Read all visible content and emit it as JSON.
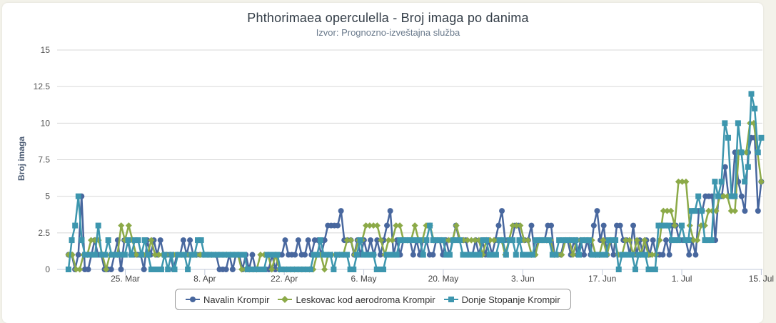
{
  "chart_data": {
    "type": "line",
    "title": "Phthorimaea operculella - Broj imaga po danima",
    "subtitle": "Izvor: Prognozno-izveštajna služba",
    "ylabel": "Broj imaga",
    "ylim": [
      0,
      15
    ],
    "yticks": [
      "0",
      "2.5",
      "5",
      "7.5",
      "10",
      "12.5",
      "15"
    ],
    "x_start": "2024-03-15",
    "x_end": "2024-07-15",
    "xticks": [
      {
        "label": "25. Mar",
        "date": "2024-03-25"
      },
      {
        "label": "8. Apr",
        "date": "2024-04-08"
      },
      {
        "label": "22. Apr",
        "date": "2024-04-22"
      },
      {
        "label": "6. May",
        "date": "2024-05-06"
      },
      {
        "label": "20. May",
        "date": "2024-05-20"
      },
      {
        "label": "3. Jun",
        "date": "2024-06-03"
      },
      {
        "label": "17. Jun",
        "date": "2024-06-17"
      },
      {
        "label": "1. Jul",
        "date": "2024-07-01"
      },
      {
        "label": "15. Jul",
        "date": "2024-07-15"
      }
    ],
    "grid": true,
    "legend_position": "bottom-center",
    "series": [
      {
        "name": "Navalin Krompir",
        "color": "#48679e",
        "marker": "circle",
        "values": [
          1,
          1,
          0,
          1,
          5,
          0,
          0,
          1,
          2,
          1,
          1,
          0,
          0,
          0,
          1,
          2,
          0,
          2,
          2,
          1,
          1,
          1,
          1,
          0,
          2,
          1,
          2,
          1,
          2,
          1,
          1,
          1,
          0,
          1,
          1,
          2,
          1,
          2,
          1,
          1,
          1,
          1,
          1,
          1,
          1,
          1,
          0,
          0,
          0,
          1,
          0,
          1,
          1,
          0,
          1,
          0,
          1,
          0,
          0,
          0,
          0,
          0,
          1,
          0,
          1,
          1,
          2,
          1,
          1,
          1,
          2,
          1,
          1,
          2,
          1,
          2,
          2,
          1,
          2,
          3,
          3,
          3,
          3,
          4,
          2,
          2,
          2,
          1,
          2,
          1,
          2,
          1,
          2,
          1,
          2,
          1,
          2,
          3,
          4,
          1,
          2,
          1,
          2,
          2,
          2,
          1,
          2,
          1,
          2,
          2,
          1,
          1,
          2,
          2,
          1,
          2,
          1,
          2,
          3,
          2,
          2,
          2,
          1,
          1,
          2,
          1,
          2,
          1,
          2,
          1,
          2,
          3,
          4,
          2,
          2,
          2,
          3,
          3,
          2,
          2,
          2,
          3,
          1,
          2,
          2,
          2,
          3,
          3,
          1,
          1,
          1,
          2,
          2,
          1,
          2,
          1,
          2,
          1,
          2,
          1,
          3,
          4,
          2,
          3,
          1,
          2,
          1,
          3,
          3,
          2,
          2,
          1,
          3,
          1,
          2,
          1,
          2,
          1,
          2,
          1,
          1,
          1,
          2,
          1,
          3,
          3,
          2,
          2,
          2,
          1,
          2,
          1,
          4,
          4,
          5,
          5,
          5,
          2,
          5,
          5,
          7,
          5,
          5,
          8,
          6,
          5,
          4,
          8,
          9,
          9,
          4,
          6
        ]
      },
      {
        "name": "Leskovac kod aerodroma Krompir",
        "color": "#8caa48",
        "marker": "diamond",
        "values": [
          1,
          1,
          0,
          0,
          1,
          1,
          2,
          2,
          2,
          1,
          0,
          1,
          1,
          1,
          3,
          2,
          3,
          2,
          1,
          1,
          1,
          1,
          2,
          1,
          1,
          1,
          1,
          1,
          1,
          1,
          1,
          1,
          1,
          1,
          1,
          1,
          1,
          1,
          1,
          1,
          1,
          1,
          1,
          1,
          1,
          1,
          0,
          0,
          0,
          0,
          0,
          1,
          1,
          1,
          0,
          1,
          0,
          0,
          0,
          0,
          0,
          0,
          0,
          0,
          0,
          0,
          1,
          1,
          0,
          1,
          1,
          1,
          1,
          1,
          2,
          2,
          1,
          2,
          2,
          3,
          3,
          3,
          3,
          2,
          1,
          2,
          2,
          3,
          3,
          2,
          2,
          2,
          3,
          2,
          2,
          3,
          3,
          2,
          2,
          2,
          2,
          2,
          2,
          3,
          2,
          2,
          2,
          2,
          2,
          2,
          1,
          2,
          2,
          2,
          2,
          2,
          1,
          2,
          3,
          3,
          3,
          2,
          2,
          1,
          1,
          2,
          2,
          2,
          2,
          1,
          1,
          1,
          2,
          2,
          1,
          2,
          2,
          2,
          2,
          2,
          1,
          1,
          2,
          1,
          2,
          2,
          1,
          1,
          2,
          2,
          1,
          2,
          1,
          2,
          1,
          1,
          1,
          2,
          4,
          4,
          4,
          3,
          6,
          6,
          6,
          3,
          2,
          2,
          3,
          3,
          4,
          4,
          4,
          5,
          5,
          5,
          4,
          4,
          8,
          8,
          8,
          10,
          10,
          8,
          6
        ]
      },
      {
        "name": "Donje Stopanje Krompir",
        "color": "#3d96ae",
        "marker": "square",
        "values": [
          0,
          2,
          3,
          5,
          2,
          1,
          1,
          1,
          1,
          3,
          1,
          1,
          2,
          1,
          1,
          1,
          1,
          1,
          2,
          1,
          2,
          2,
          1,
          2,
          1,
          0,
          0,
          0,
          0,
          1,
          0,
          1,
          0,
          1,
          1,
          1,
          0,
          1,
          1,
          2,
          2,
          1,
          1,
          1,
          1,
          1,
          1,
          1,
          1,
          1,
          1,
          1,
          1,
          1,
          0,
          0,
          0,
          0,
          0,
          0,
          1,
          1,
          1,
          1,
          0,
          0,
          0,
          0,
          0,
          0,
          0,
          0,
          0,
          0,
          1,
          1,
          2,
          1,
          1,
          1,
          0,
          1,
          1,
          1,
          1,
          0,
          0,
          1,
          2,
          1,
          1,
          1,
          1,
          0,
          0,
          0,
          1,
          1,
          1,
          1,
          2,
          2,
          2,
          2,
          2,
          2,
          2,
          1,
          2,
          3,
          2,
          2,
          2,
          2,
          1,
          1,
          2,
          2,
          2,
          1,
          1,
          1,
          1,
          1,
          1,
          2,
          2,
          1,
          1,
          1,
          2,
          2,
          1,
          2,
          2,
          1,
          2,
          1,
          1,
          1,
          1,
          2,
          2,
          2,
          2,
          2,
          1,
          1,
          2,
          2,
          2,
          2,
          2,
          2,
          1,
          2,
          2,
          2,
          1,
          1,
          1,
          1,
          1,
          2,
          2,
          2,
          0,
          1,
          1,
          1,
          1,
          0,
          1,
          1,
          1,
          0,
          0,
          0,
          3,
          3,
          3,
          3,
          2,
          2,
          2,
          3,
          2,
          2,
          4,
          4,
          5,
          4,
          2,
          2,
          2,
          6,
          5,
          6,
          10,
          9,
          5,
          5,
          10,
          8,
          6,
          7,
          12,
          11,
          8,
          9
        ]
      }
    ]
  },
  "legend": {
    "items": [
      "Navalin Krompir",
      "Leskovac kod aerodroma Krompir",
      "Donje Stopanje Krompir"
    ]
  }
}
